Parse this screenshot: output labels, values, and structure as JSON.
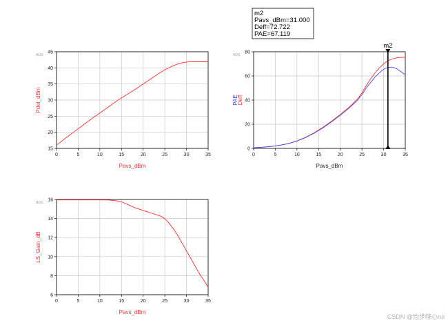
{
  "watermark": "CSDN @怡步晓心rui",
  "colors": {
    "red": "#ff3030",
    "blue": "#4646ff",
    "grid": "#c8c8c8",
    "frame": "#000000",
    "ads": "#999999"
  },
  "marker_box": {
    "lines": [
      "m2",
      "Pavs_dBm=31.000",
      "Deff=72.722",
      "PAE=67.119"
    ]
  },
  "chart_data": [
    {
      "type": "line",
      "ads_tag": "ADS",
      "xlabel": "Pavs_dBm",
      "ylabel": "Pdel_dBm",
      "xlim": [
        0,
        35
      ],
      "ylim": [
        15,
        45
      ],
      "xticks": [
        0,
        5,
        10,
        15,
        20,
        25,
        30,
        35
      ],
      "yticks": [
        15,
        20,
        25,
        30,
        35,
        40,
        45
      ],
      "grid": true,
      "series": [
        {
          "color": "red",
          "x": [
            0,
            2,
            4,
            6,
            8,
            10,
            12,
            14,
            16,
            18,
            20,
            22,
            24,
            25,
            26,
            27,
            28,
            29,
            30,
            31,
            32,
            33,
            34,
            35
          ],
          "y": [
            16,
            18.1,
            20.1,
            22.1,
            24.1,
            26,
            27.9,
            29.8,
            31.5,
            33.2,
            35,
            36.8,
            38.6,
            39.4,
            40.1,
            40.7,
            41.2,
            41.6,
            41.8,
            41.9,
            41.9,
            41.9,
            41.9,
            41.9
          ]
        }
      ]
    },
    {
      "type": "line",
      "ads_tag": "ADS",
      "xlabel": "Pavs_dBm",
      "ylabel_parts": [
        {
          "text": "PAE",
          "color": "blue"
        },
        {
          "text": "Deff",
          "color": "red"
        }
      ],
      "xlim": [
        0,
        35
      ],
      "ylim": [
        0,
        80
      ],
      "xticks": [
        0,
        5,
        10,
        15,
        20,
        25,
        30,
        35
      ],
      "yticks": [
        0,
        20,
        40,
        60,
        80
      ],
      "grid": true,
      "marker": {
        "name": "m2",
        "x": 31
      },
      "series": [
        {
          "name": "Deff",
          "color": "red",
          "x": [
            0,
            2,
            4,
            6,
            8,
            10,
            12,
            14,
            16,
            18,
            20,
            22,
            24,
            25,
            26,
            27,
            28,
            29,
            30,
            31,
            32,
            33,
            34,
            35
          ],
          "y": [
            0.5,
            1,
            1.6,
            2.5,
            4,
            6.2,
            9.2,
            13,
            17.5,
            22.5,
            28,
            34,
            41,
            46,
            52,
            57.5,
            62.5,
            66.5,
            70,
            72.7,
            74,
            75,
            75.3,
            75.5
          ]
        },
        {
          "name": "PAE",
          "color": "blue",
          "x": [
            0,
            2,
            4,
            6,
            8,
            10,
            12,
            14,
            16,
            18,
            20,
            22,
            24,
            25,
            26,
            27,
            28,
            29,
            30,
            31,
            32,
            33,
            34,
            35
          ],
          "y": [
            0.5,
            1,
            1.6,
            2.5,
            3.9,
            6,
            9,
            12.7,
            17,
            22,
            27.5,
            33.3,
            40,
            44.5,
            50,
            54.5,
            59,
            62.5,
            65.5,
            67.1,
            67.3,
            66,
            63.5,
            61
          ]
        }
      ]
    },
    {
      "type": "line",
      "ads_tag": "ADS",
      "xlabel": "Pavs_dBm",
      "ylabel": "LS_Gain_dB",
      "xlim": [
        0,
        35
      ],
      "ylim": [
        6,
        16
      ],
      "xticks": [
        0,
        5,
        10,
        15,
        20,
        25,
        30,
        35
      ],
      "yticks": [
        6,
        8,
        10,
        12,
        14,
        16
      ],
      "grid": true,
      "series": [
        {
          "color": "red",
          "x": [
            0,
            2,
            4,
            6,
            8,
            10,
            12,
            13,
            14,
            15,
            16,
            17,
            18,
            19,
            20,
            21,
            22,
            23,
            24,
            25,
            26,
            27,
            28,
            29,
            30,
            31,
            32,
            33,
            34,
            35
          ],
          "y": [
            15.95,
            15.95,
            15.95,
            15.95,
            15.95,
            15.95,
            15.94,
            15.9,
            15.85,
            15.75,
            15.55,
            15.35,
            15.15,
            15.0,
            14.85,
            14.7,
            14.55,
            14.4,
            14.25,
            14.0,
            13.5,
            12.9,
            12.2,
            11.4,
            10.6,
            9.8,
            9.0,
            8.2,
            7.5,
            6.8
          ]
        }
      ]
    }
  ]
}
